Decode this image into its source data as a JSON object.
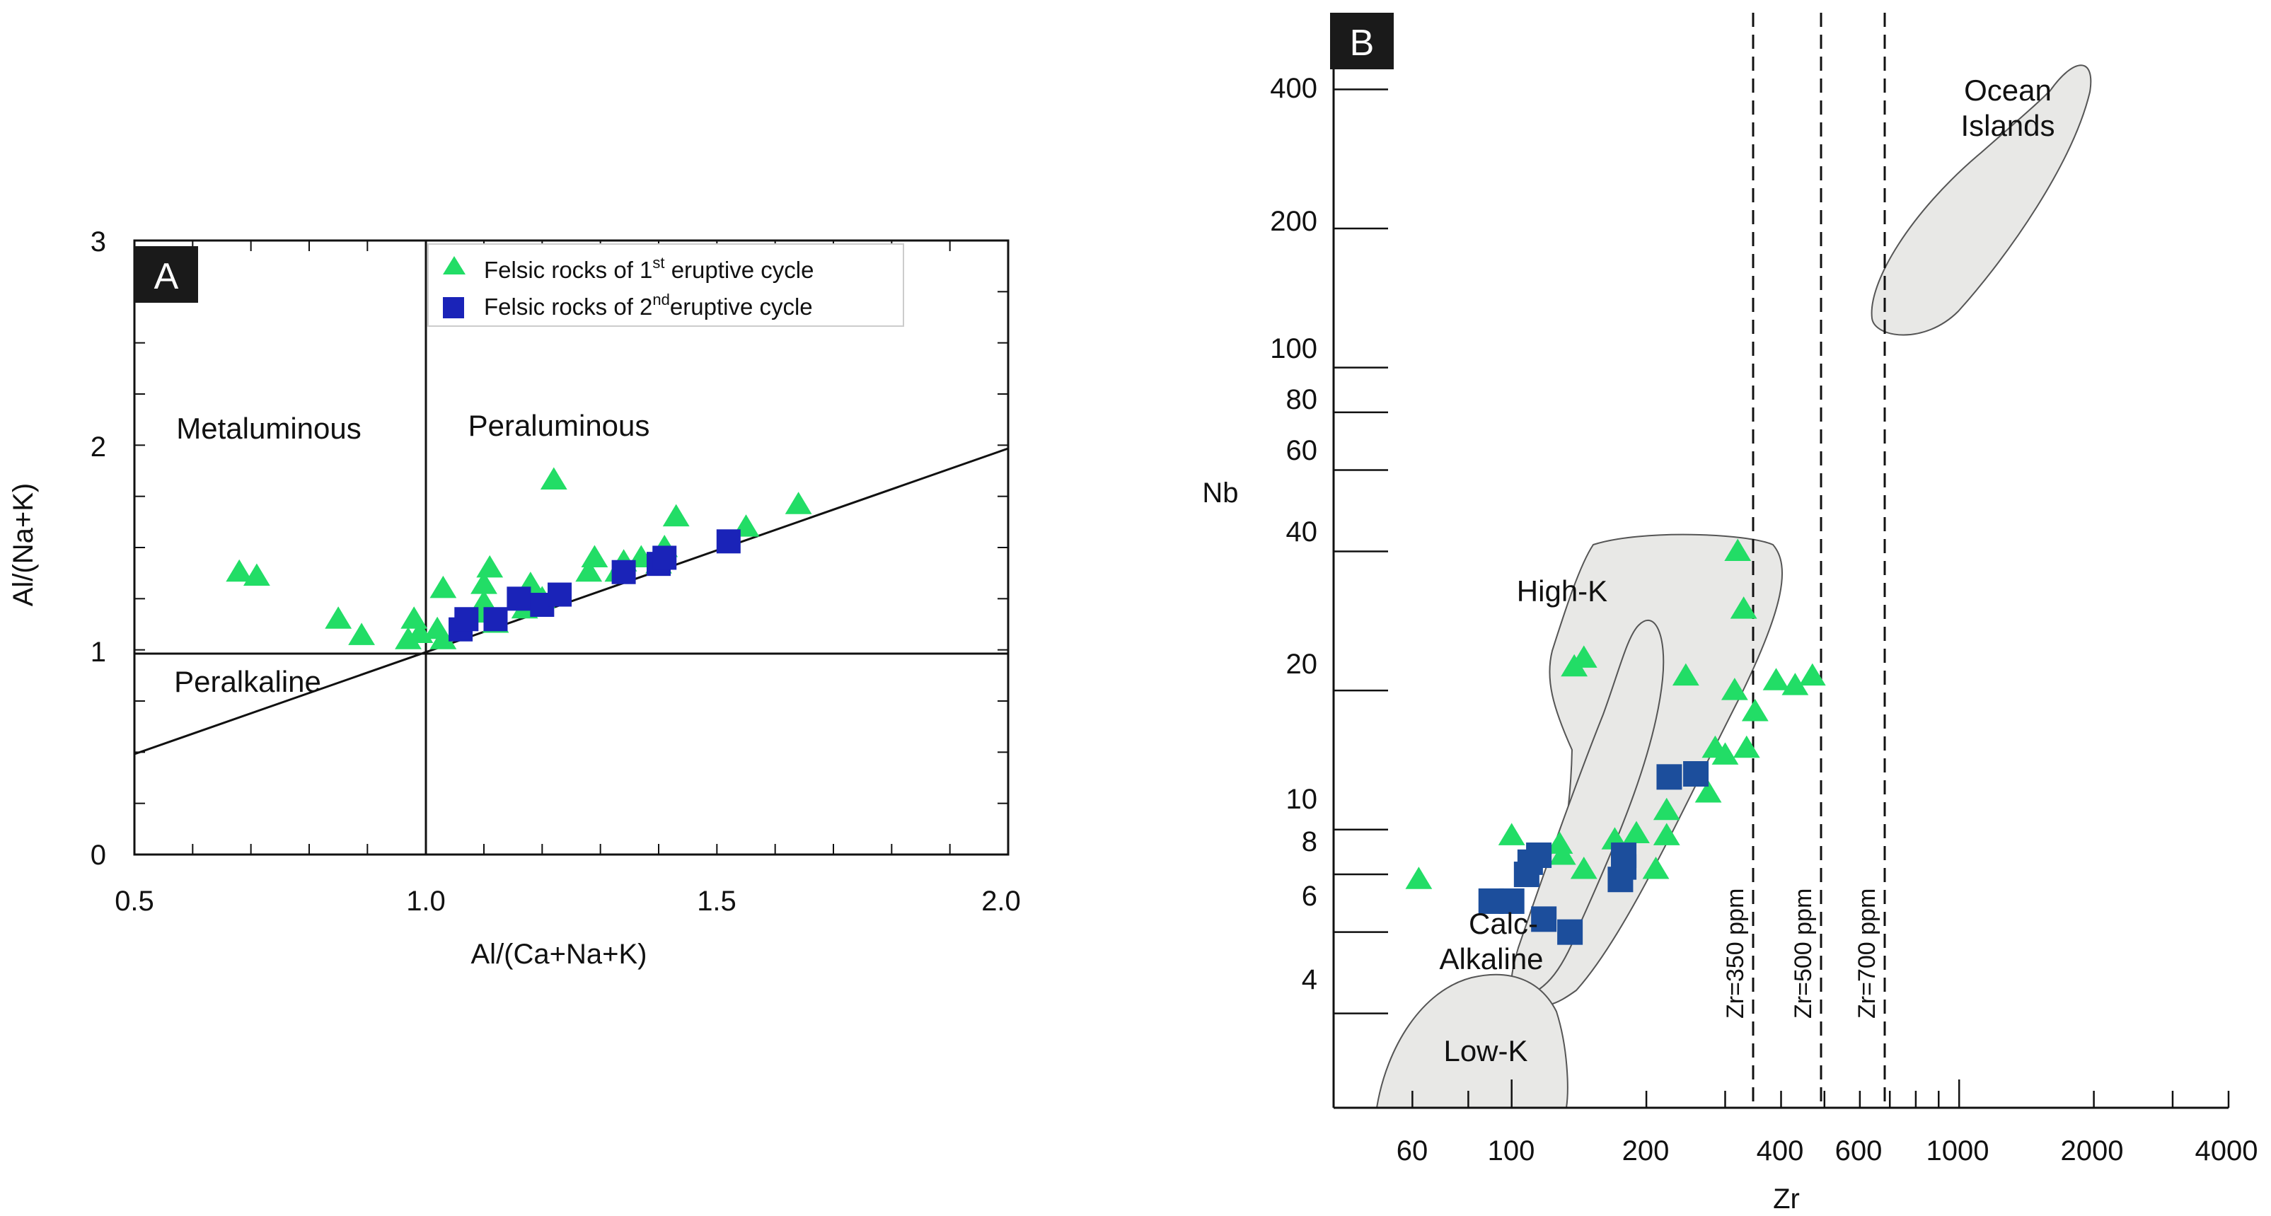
{
  "chart_data": [
    {
      "panel": "A",
      "type": "scatter",
      "xlabel": "Al/(Ca+Na+K)",
      "ylabel": "Al/(Na+K)",
      "xlim": [
        0.5,
        2.0
      ],
      "ylim": [
        0,
        3
      ],
      "x_ticks": [
        "0.5",
        "1.0",
        "1.5",
        "2.0"
      ],
      "y_ticks": [
        "0",
        "1",
        "2",
        "3"
      ],
      "regions": [
        "Metaluminous",
        "Peraluminous",
        "Peralkaline"
      ],
      "legend": [
        {
          "prefix": "Felsic rocks of 1",
          "sup": "st",
          "suffix": " eruptive cycle",
          "marker": "triangle",
          "color": "#22dd66"
        },
        {
          "prefix": "Felsic rocks of 2",
          "sup": "nd",
          "suffix": "eruptive cycle",
          "marker": "square",
          "color": "#1a23b8"
        }
      ],
      "series": [
        {
          "name": "Felsic rocks of 1st eruptive cycle",
          "marker": "triangle",
          "color": "#22dd66",
          "points": [
            [
              0.68,
              1.38
            ],
            [
              0.71,
              1.36
            ],
            [
              0.85,
              1.15
            ],
            [
              0.89,
              1.07
            ],
            [
              0.97,
              1.05
            ],
            [
              0.98,
              1.15
            ],
            [
              0.99,
              1.08
            ],
            [
              1.02,
              1.1
            ],
            [
              1.03,
              1.05
            ],
            [
              1.03,
              1.3
            ],
            [
              1.09,
              1.18
            ],
            [
              1.1,
              1.23
            ],
            [
              1.1,
              1.32
            ],
            [
              1.11,
              1.4
            ],
            [
              1.12,
              1.13
            ],
            [
              1.17,
              1.2
            ],
            [
              1.18,
              1.32
            ],
            [
              1.2,
              1.25
            ],
            [
              1.22,
              1.83
            ],
            [
              1.28,
              1.38
            ],
            [
              1.29,
              1.45
            ],
            [
              1.33,
              1.38
            ],
            [
              1.34,
              1.43
            ],
            [
              1.37,
              1.45
            ],
            [
              1.4,
              1.42
            ],
            [
              1.41,
              1.5
            ],
            [
              1.43,
              1.65
            ],
            [
              1.55,
              1.6
            ],
            [
              1.64,
              1.71
            ]
          ]
        },
        {
          "name": "Felsic rocks of 2nd eruptive cycle",
          "marker": "square",
          "color": "#1a23b8",
          "points": [
            [
              1.06,
              1.1
            ],
            [
              1.07,
              1.15
            ],
            [
              1.12,
              1.15
            ],
            [
              1.16,
              1.25
            ],
            [
              1.2,
              1.22
            ],
            [
              1.23,
              1.27
            ],
            [
              1.34,
              1.38
            ],
            [
              1.4,
              1.42
            ],
            [
              1.41,
              1.45
            ],
            [
              1.52,
              1.53
            ]
          ]
        }
      ]
    },
    {
      "panel": "B",
      "type": "scatter",
      "scale": "log-log",
      "xlabel": "Zr",
      "ylabel": "Nb",
      "xlim": [
        40,
        4000
      ],
      "ylim": [
        2.5,
        550
      ],
      "x_ticks": [
        "60",
        "100",
        "200",
        "400",
        "600",
        "1000",
        "2000",
        "4000"
      ],
      "y_ticks": [
        "4",
        "6",
        "8",
        "10",
        "20",
        "40",
        "60",
        "80",
        "100",
        "200",
        "400"
      ],
      "regions": [
        "High-K",
        "Calc-",
        "Alkaline",
        "Low-K",
        "Ocean",
        "Islands"
      ],
      "reference_lines": [
        {
          "label": "Zr=350 ppm",
          "zr": 350
        },
        {
          "label": "Zr=500 ppm",
          "zr": 500
        },
        {
          "label": "Zr=700 ppm",
          "zr": 700
        }
      ],
      "series": [
        {
          "name": "Felsic rocks of 1st eruptive cycle",
          "marker": "triangle",
          "color": "#22dd66",
          "points": [
            [
              62,
              7.8
            ],
            [
              100,
              9.7
            ],
            [
              128,
              9.3
            ],
            [
              130,
              8.8
            ],
            [
              138,
              22.5
            ],
            [
              145,
              23.5
            ],
            [
              145,
              8.2
            ],
            [
              170,
              9.5
            ],
            [
              190,
              9.8
            ],
            [
              210,
              8.2
            ],
            [
              222,
              11
            ],
            [
              222,
              9.7
            ],
            [
              245,
              21.5
            ],
            [
              275,
              12
            ],
            [
              285,
              15
            ],
            [
              300,
              14.5
            ],
            [
              315,
              20
            ],
            [
              320,
              40
            ],
            [
              330,
              30
            ],
            [
              335,
              15
            ],
            [
              350,
              18
            ],
            [
              390,
              21
            ],
            [
              430,
              20.5
            ],
            [
              470,
              21.5
            ]
          ]
        },
        {
          "name": "Felsic rocks of 2nd eruptive cycle",
          "marker": "square",
          "color": "#1c4e9c",
          "points": [
            [
              90,
              7
            ],
            [
              100,
              7
            ],
            [
              108,
              8
            ],
            [
              110,
              8.5
            ],
            [
              115,
              8.8
            ],
            [
              118,
              6.4
            ],
            [
              135,
              6
            ],
            [
              175,
              7.8
            ],
            [
              178,
              8.3
            ],
            [
              178,
              8.8
            ],
            [
              225,
              13
            ],
            [
              258,
              13.2
            ]
          ]
        }
      ]
    }
  ]
}
